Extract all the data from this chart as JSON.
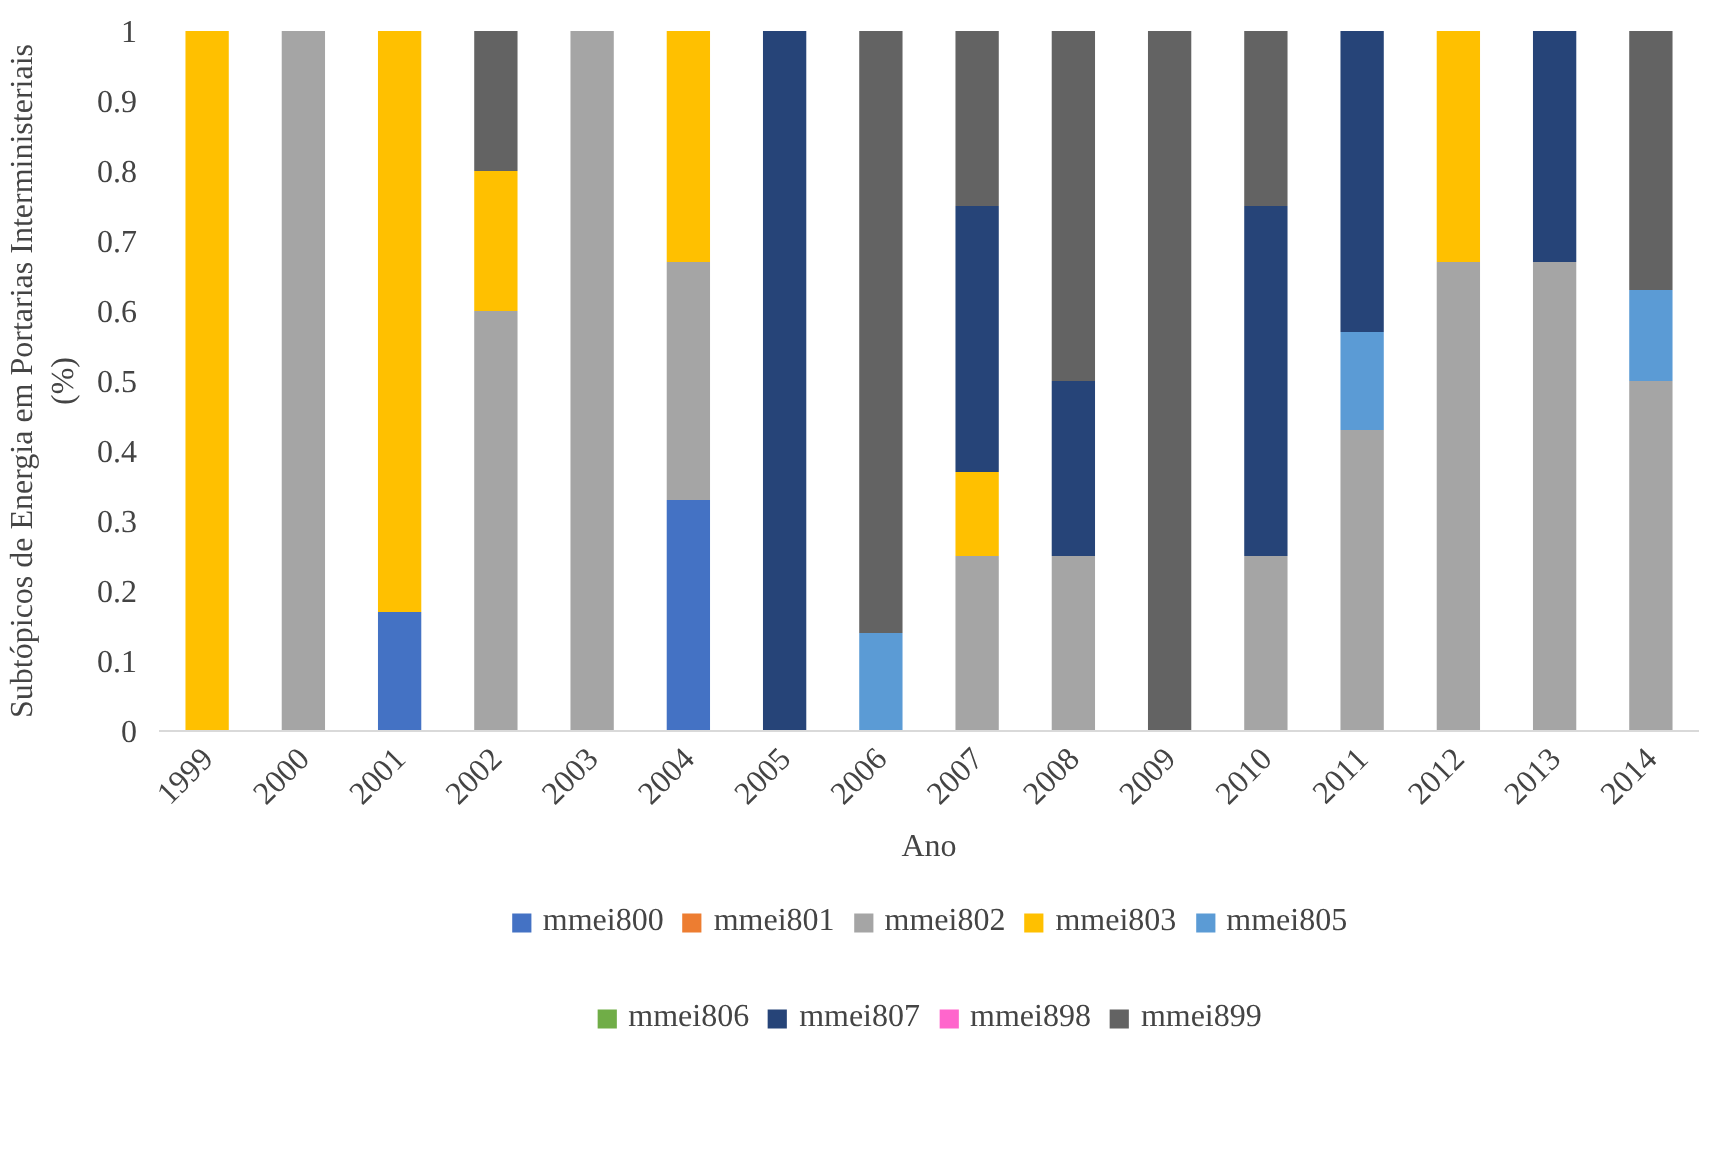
{
  "chart_data": {
    "type": "bar",
    "stacked": true,
    "xlabel": "Ano",
    "ylabel": "Subtópicos de Energia em Portarias Interministeriais\n(%)",
    "categories": [
      "1999",
      "2000",
      "2001",
      "2002",
      "2003",
      "2004",
      "2005",
      "2006",
      "2007",
      "2008",
      "2009",
      "2010",
      "2011",
      "2012",
      "2013",
      "2014"
    ],
    "ylim": [
      0,
      1
    ],
    "yticks": [
      0,
      0.1,
      0.2,
      0.3,
      0.4,
      0.5,
      0.6,
      0.7,
      0.8,
      0.9,
      1
    ],
    "grid": false,
    "legend": "bottom",
    "series": [
      {
        "name": "mmei800",
        "color": "#4472c4",
        "values": [
          0,
          0,
          0.17,
          0,
          0,
          0.33,
          0,
          0,
          0,
          0,
          0,
          0,
          0,
          0,
          0,
          0
        ]
      },
      {
        "name": "mmei801",
        "color": "#ed7d31",
        "values": [
          0,
          0,
          0,
          0,
          0,
          0,
          0,
          0,
          0,
          0,
          0,
          0,
          0,
          0,
          0,
          0
        ]
      },
      {
        "name": "mmei802",
        "color": "#a5a5a5",
        "values": [
          0,
          1,
          0,
          0.6,
          1,
          0.34,
          0,
          0,
          0.25,
          0.25,
          0,
          0.25,
          0.43,
          0.67,
          0.67,
          0.5
        ]
      },
      {
        "name": "mmei803",
        "color": "#ffc000",
        "values": [
          1,
          0,
          0.83,
          0.2,
          0,
          0.33,
          0,
          0,
          0.12,
          0,
          0,
          0,
          0,
          0.33,
          0,
          0
        ]
      },
      {
        "name": "mmei805",
        "color": "#5b9bd5",
        "values": [
          0,
          0,
          0,
          0,
          0,
          0,
          0,
          0.14,
          0,
          0,
          0,
          0,
          0.14,
          0,
          0,
          0.13
        ]
      },
      {
        "name": "mmei806",
        "color": "#70ad47",
        "values": [
          0,
          0,
          0,
          0,
          0,
          0,
          0,
          0,
          0,
          0,
          0,
          0,
          0,
          0,
          0,
          0
        ]
      },
      {
        "name": "mmei807",
        "color": "#264478",
        "values": [
          0,
          0,
          0,
          0,
          0,
          0,
          1,
          0,
          0.38,
          0.25,
          0,
          0.5,
          0.43,
          0,
          0.33,
          0
        ]
      },
      {
        "name": "mmei898",
        "color": "#ff66cc",
        "values": [
          0,
          0,
          0,
          0,
          0,
          0,
          0,
          0,
          0,
          0,
          0,
          0,
          0,
          0,
          0,
          0
        ]
      },
      {
        "name": "mmei899",
        "color": "#636363",
        "values": [
          0,
          0,
          0,
          0.2,
          0,
          0,
          0,
          0.86,
          0.25,
          0.5,
          1,
          0.25,
          0,
          0,
          0,
          0.37
        ]
      }
    ]
  }
}
